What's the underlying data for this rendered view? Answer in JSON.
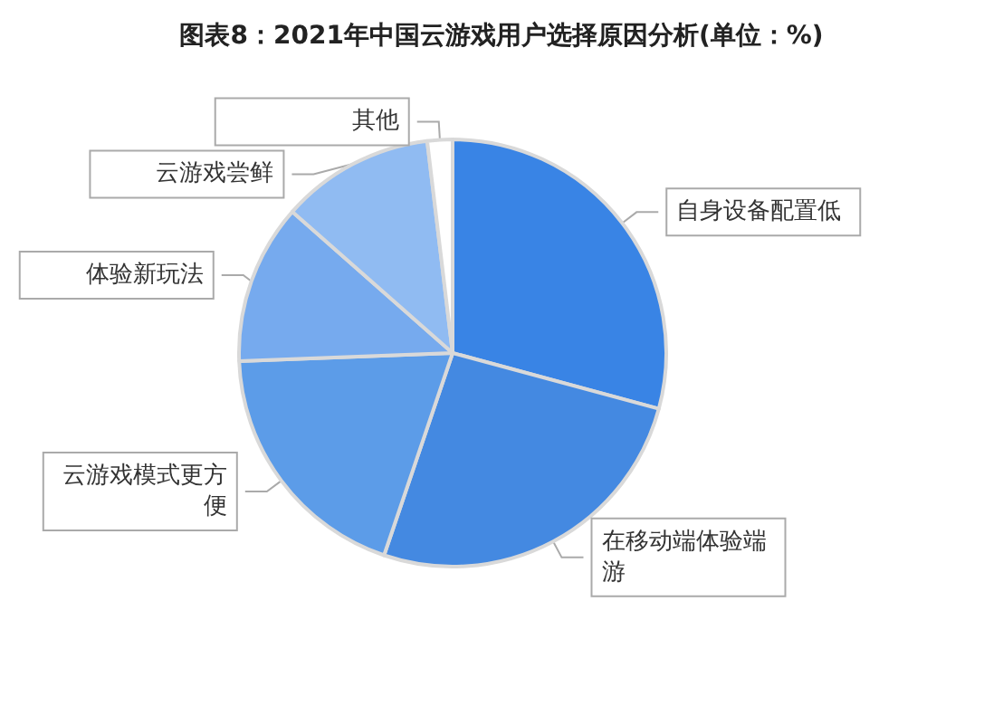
{
  "chart_data": {
    "type": "pie",
    "title": "图表8：2021年中国云游戏用户选择原因分析(单位：%)",
    "categories": [
      "自身设备配置低",
      "在移动端体验端游",
      "云游戏模式更方便",
      "体验新玩法",
      "云游戏尝鲜",
      "其他"
    ],
    "values": [
      29.2,
      26.0,
      19.2,
      12.1,
      11.6,
      1.9
    ],
    "colors": [
      "#3984e5",
      "#4489e1",
      "#5c9ce8",
      "#76aaee",
      "#90bbf2",
      "#ffffff"
    ],
    "legend": false
  }
}
